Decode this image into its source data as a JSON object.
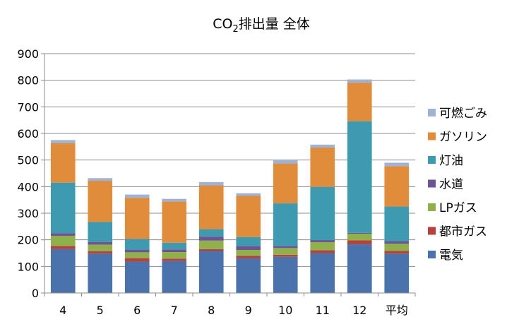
{
  "chart_data": {
    "type": "bar",
    "stacked": true,
    "title_main": "CO",
    "title_sub": "2",
    "title_rest": "排出量 全体",
    "title": "CO2排出量 全体",
    "xlabel": "",
    "ylabel": "",
    "ylim": [
      0,
      900
    ],
    "yticks": [
      0,
      100,
      200,
      300,
      400,
      500,
      600,
      700,
      800,
      900
    ],
    "grid": true,
    "legend_position": "right",
    "categories": [
      "4",
      "5",
      "6",
      "7",
      "8",
      "9",
      "10",
      "11",
      "12",
      "平均"
    ],
    "series": [
      {
        "name": "電気",
        "color": "#4a72ad",
        "values": [
          165,
          148,
          118,
          120,
          158,
          130,
          136,
          150,
          183,
          148
        ]
      },
      {
        "name": "都市ガス",
        "color": "#b9413c",
        "values": [
          12,
          9,
          13,
          9,
          7,
          10,
          8,
          11,
          15,
          10
        ]
      },
      {
        "name": "LPガス",
        "color": "#8fb04a",
        "values": [
          38,
          25,
          22,
          25,
          32,
          22,
          25,
          30,
          25,
          27
        ]
      },
      {
        "name": "水道",
        "color": "#6d5495",
        "values": [
          10,
          10,
          10,
          10,
          15,
          15,
          8,
          8,
          3,
          10
        ]
      },
      {
        "name": "灯油",
        "color": "#3d9ab0",
        "values": [
          190,
          75,
          40,
          25,
          28,
          33,
          160,
          200,
          420,
          130
        ]
      },
      {
        "name": "ガソリン",
        "color": "#e08c3a",
        "values": [
          148,
          155,
          155,
          155,
          165,
          155,
          150,
          148,
          145,
          152
        ]
      },
      {
        "name": "可燃ごみ",
        "color": "#9fb3d7",
        "values": [
          12,
          10,
          12,
          10,
          12,
          10,
          13,
          11,
          12,
          13
        ]
      }
    ]
  }
}
